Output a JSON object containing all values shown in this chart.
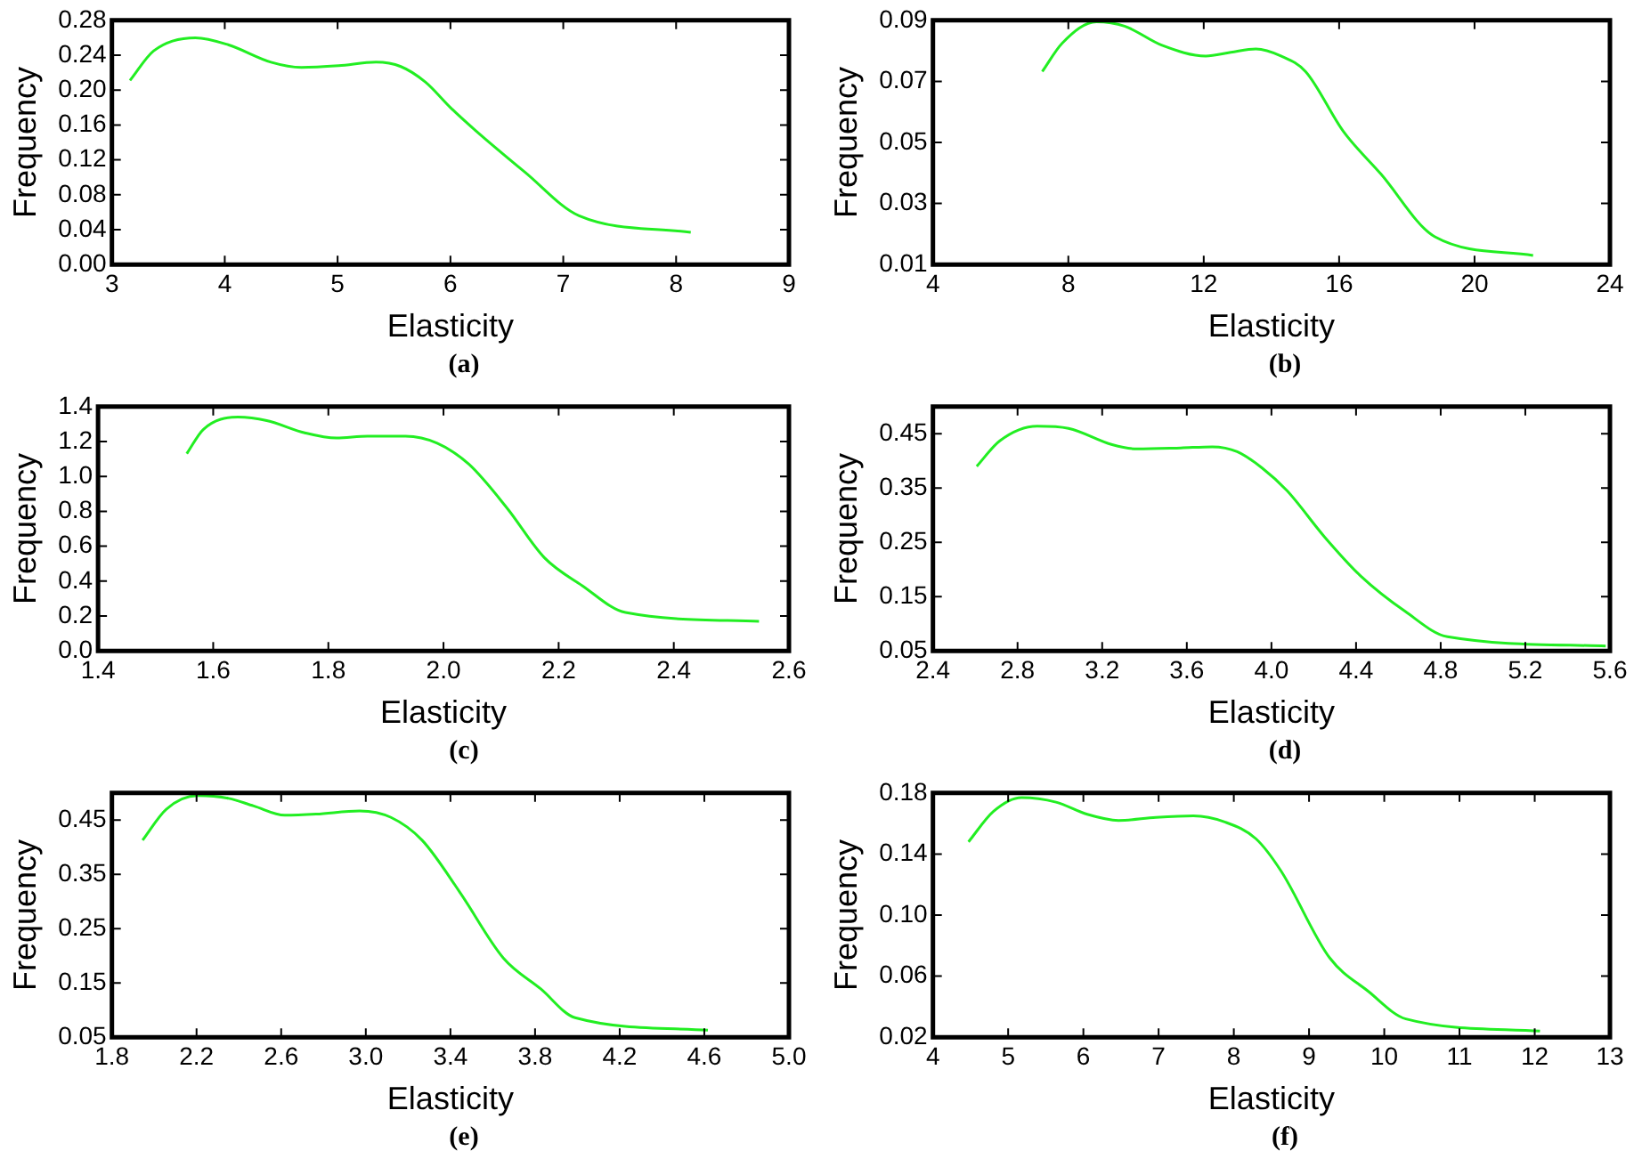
{
  "chart_data": [
    {
      "type": "line",
      "xlabel": "Elasticity",
      "ylabel": "Frequency",
      "annotations": [
        "(a)"
      ],
      "xlim": [
        3,
        9
      ],
      "xticks": [
        3,
        4,
        5,
        6,
        7,
        8,
        9
      ],
      "ylim": [
        0,
        0.28
      ],
      "yticks": [
        {
          "value": 0,
          "label": "0.00"
        },
        {
          "value": 0.04,
          "label": "0.04"
        },
        {
          "value": 0.08,
          "label": "0.08"
        },
        {
          "value": 0.12,
          "label": "0.12"
        },
        {
          "value": 0.16,
          "label": "0.16"
        },
        {
          "value": 0.2,
          "label": "0.20"
        },
        {
          "value": 0.24,
          "label": "0.24"
        },
        {
          "value": 0.28,
          "label": "0.28"
        }
      ],
      "grid": false,
      "x": [
        3.16,
        3.37,
        3.74,
        4.03,
        4.41,
        4.68,
        5.01,
        5.34,
        5.56,
        5.78,
        6.0,
        6.22,
        6.66,
        7.14,
        8.13
      ],
      "series": [
        {
          "color": "#22ee22",
          "values": [
            0.211,
            0.245,
            0.26,
            0.252,
            0.232,
            0.226,
            0.228,
            0.232,
            0.227,
            0.209,
            0.18,
            0.154,
            0.106,
            0.056,
            0.037
          ]
        }
      ]
    },
    {
      "type": "line",
      "xlabel": "Elasticity",
      "ylabel": "Frequency",
      "annotations": [
        "(b)"
      ],
      "xlim": [
        4,
        24
      ],
      "xticks": [
        4,
        8,
        12,
        16,
        20,
        24
      ],
      "ylim": [
        0.01,
        0.09
      ],
      "yticks": [
        0.01,
        0.03,
        0.05,
        0.07,
        0.09
      ],
      "grid": false,
      "x": [
        7.23,
        7.82,
        8.83,
        9.66,
        10.77,
        12.06,
        12.8,
        13.54,
        14.28,
        15.01,
        16.12,
        17.23,
        18.83,
        21.73
      ],
      "series": [
        {
          "color": "#22ee22",
          "values": [
            0.0732,
            0.0825,
            0.0895,
            0.0881,
            0.0818,
            0.0783,
            0.0795,
            0.0806,
            0.0783,
            0.0732,
            0.0537,
            0.0397,
            0.0191,
            0.013
          ]
        }
      ]
    },
    {
      "type": "line",
      "xlabel": "Elasticity",
      "ylabel": "Frequency",
      "annotations": [
        "(c)"
      ],
      "xlim": [
        1.4,
        2.6
      ],
      "xticks": [
        {
          "value": 1.4,
          "label": "1.4"
        },
        {
          "value": 1.6,
          "label": "1.6"
        },
        {
          "value": 1.8,
          "label": "1.8"
        },
        {
          "value": 2,
          "label": "2.0"
        },
        {
          "value": 2.2,
          "label": "2.2"
        },
        {
          "value": 2.4,
          "label": "2.4"
        },
        {
          "value": 2.6,
          "label": "2.6"
        }
      ],
      "ylim": [
        0,
        1.4
      ],
      "yticks": [
        {
          "value": 0,
          "label": "0.0"
        },
        {
          "value": 0.2,
          "label": "0.2"
        },
        {
          "value": 0.4,
          "label": "0.4"
        },
        {
          "value": 0.6,
          "label": "0.6"
        },
        {
          "value": 0.8,
          "label": "0.8"
        },
        {
          "value": 1,
          "label": "1.0"
        },
        {
          "value": 1.2,
          "label": "1.2"
        },
        {
          "value": 1.4,
          "label": "1.4"
        }
      ],
      "grid": false,
      "x": [
        1.554,
        1.583,
        1.643,
        1.693,
        1.759,
        1.814,
        1.868,
        1.934,
        1.989,
        2.044,
        2.11,
        2.175,
        2.241,
        2.316,
        2.548
      ],
      "series": [
        {
          "color": "#22ee22",
          "values": [
            1.13,
            1.27,
            1.34,
            1.32,
            1.25,
            1.22,
            1.23,
            1.23,
            1.19,
            1.07,
            0.82,
            0.535,
            0.374,
            0.22,
            0.17
          ]
        }
      ]
    },
    {
      "type": "line",
      "xlabel": "Elasticity",
      "ylabel": "Frequency",
      "annotations": [
        "(d)"
      ],
      "xlim": [
        2.4,
        5.6
      ],
      "xticks": [
        2.4,
        2.8,
        3.2,
        3.6,
        {
          "value": 4,
          "label": "4.0"
        },
        4.4,
        4.8,
        5.2,
        5.6
      ],
      "ylim": [
        0.05,
        0.5
      ],
      "yticks": [
        0.05,
        0.15,
        0.25,
        0.35,
        0.45
      ],
      "grid": false,
      "x": [
        2.607,
        2.716,
        2.893,
        3.041,
        3.247,
        3.365,
        3.572,
        3.72,
        3.838,
        3.956,
        4.074,
        4.251,
        4.422,
        4.635,
        4.832,
        5.58
      ],
      "series": [
        {
          "color": "#22ee22",
          "values": [
            0.39,
            0.437,
            0.464,
            0.46,
            0.43,
            0.422,
            0.424,
            0.426,
            0.417,
            0.387,
            0.345,
            0.26,
            0.188,
            0.122,
            0.076,
            0.059
          ]
        }
      ]
    },
    {
      "type": "line",
      "xlabel": "Elasticity",
      "ylabel": "Frequency",
      "annotations": [
        "(e)"
      ],
      "xlim": [
        1.8,
        5
      ],
      "xticks": [
        1.8,
        2.2,
        2.6,
        {
          "value": 3,
          "label": "3.0"
        },
        3.4,
        3.8,
        4.2,
        4.6,
        {
          "value": 5,
          "label": "5.0"
        }
      ],
      "ylim": [
        0.05,
        0.5
      ],
      "yticks": [
        0.05,
        0.15,
        0.25,
        0.35,
        0.45
      ],
      "grid": false,
      "x": [
        1.945,
        2.057,
        2.204,
        2.352,
        2.47,
        2.617,
        2.765,
        2.971,
        3.119,
        3.266,
        3.443,
        3.65,
        3.827,
        3.989,
        4.617
      ],
      "series": [
        {
          "color": "#22ee22",
          "values": [
            0.413,
            0.47,
            0.495,
            0.49,
            0.476,
            0.459,
            0.461,
            0.467,
            0.455,
            0.413,
            0.318,
            0.196,
            0.139,
            0.086,
            0.063
          ]
        }
      ]
    },
    {
      "type": "line",
      "xlabel": "Elasticity",
      "ylabel": "Frequency",
      "annotations": [
        "(f)"
      ],
      "xlim": [
        4,
        13
      ],
      "xticks": [
        4,
        5,
        6,
        7,
        8,
        9,
        10,
        11,
        12,
        13
      ],
      "ylim": [
        0.02,
        0.18
      ],
      "yticks": [
        0.02,
        0.06,
        {
          "value": 0.1,
          "label": "0.10"
        },
        0.14,
        0.18
      ],
      "grid": false,
      "x": [
        4.473,
        4.806,
        5.179,
        5.636,
        6.051,
        6.467,
        6.965,
        7.463,
        7.879,
        8.294,
        8.626,
        9.274,
        9.789,
        10.287,
        12.07
      ],
      "series": [
        {
          "color": "#22ee22",
          "values": [
            0.148,
            0.168,
            0.177,
            0.174,
            0.166,
            0.162,
            0.164,
            0.165,
            0.161,
            0.15,
            0.129,
            0.072,
            0.05,
            0.032,
            0.024
          ]
        }
      ]
    }
  ]
}
